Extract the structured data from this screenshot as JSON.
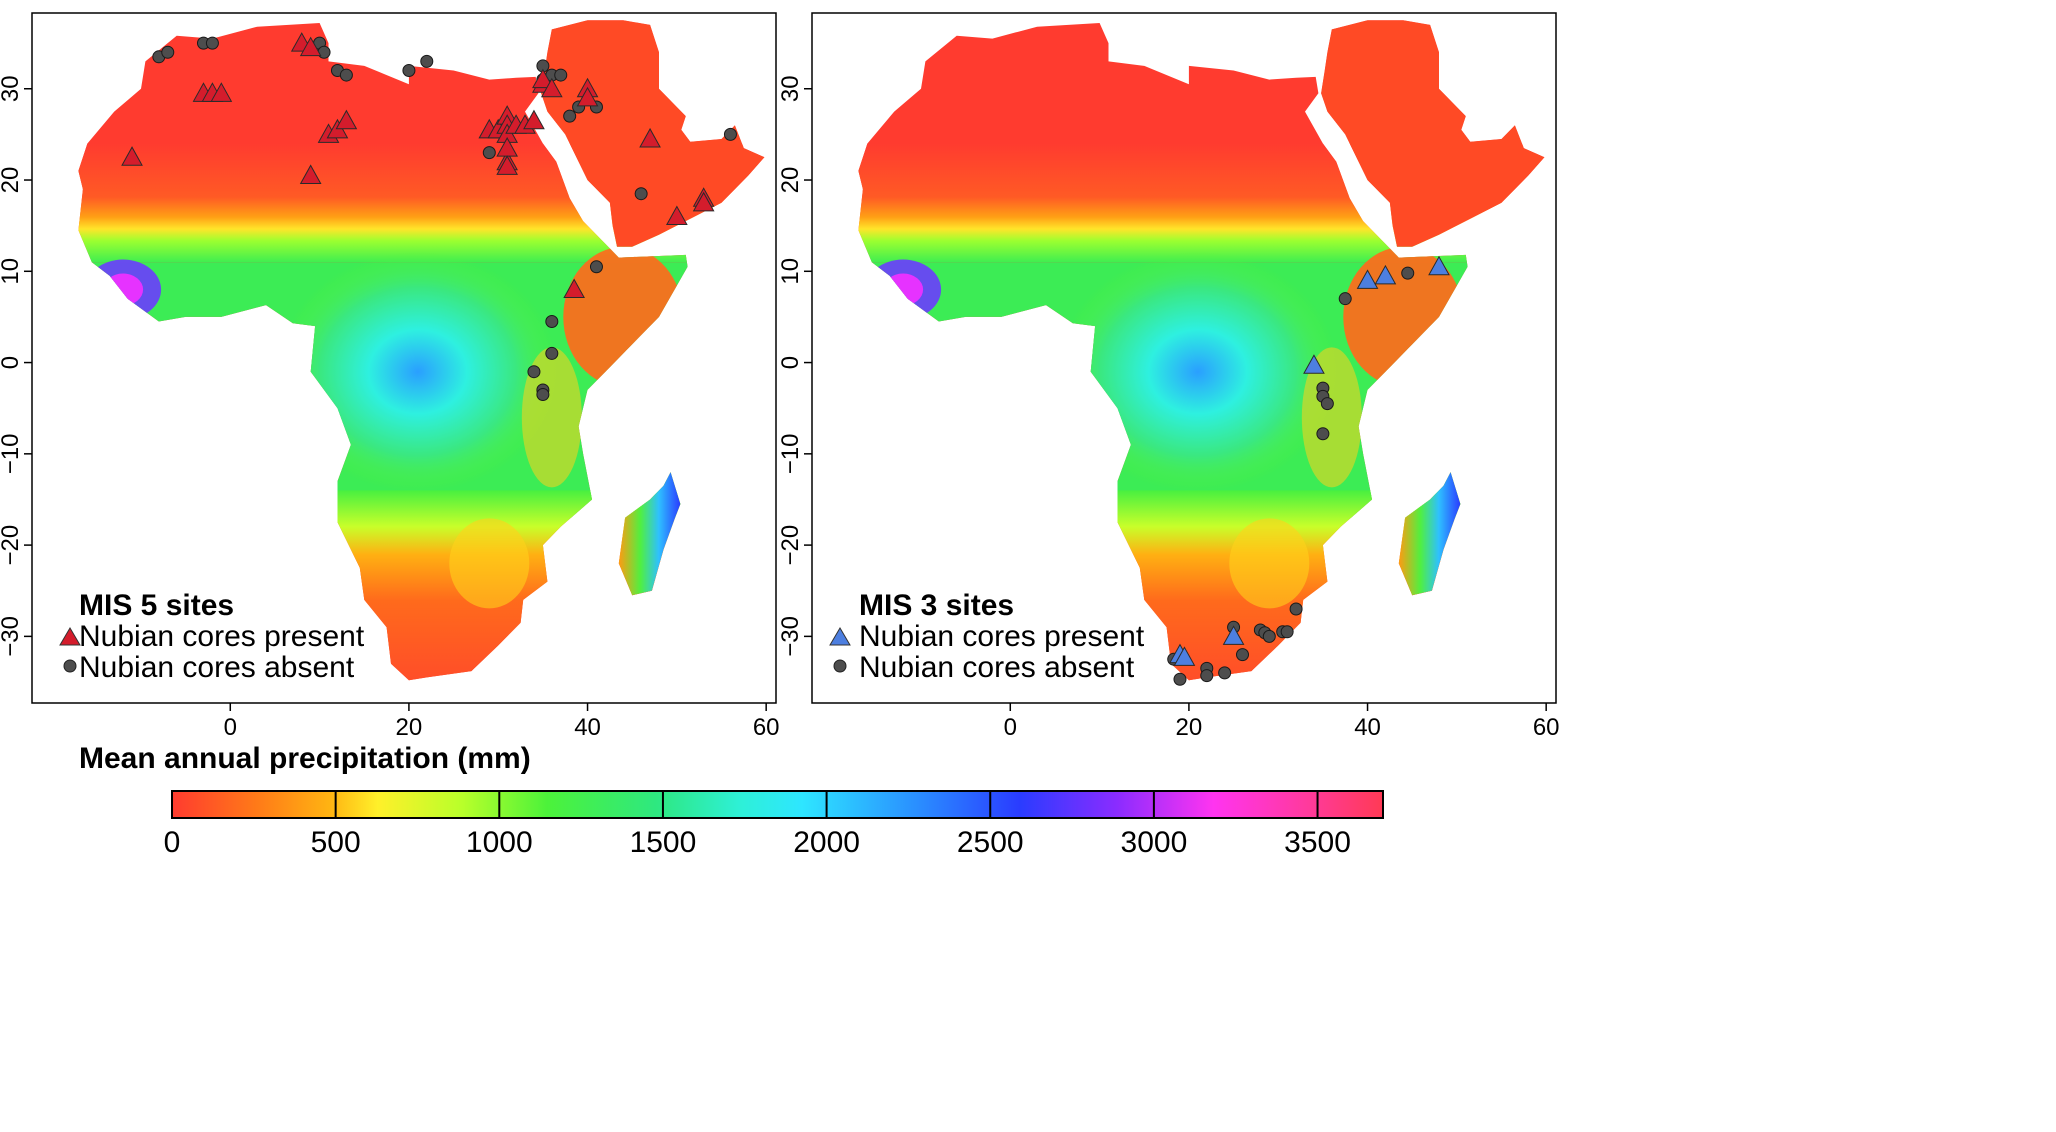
{
  "colors": {
    "precip_scale": [
      "#ff3b2f",
      "#ff6a1c",
      "#ff9a12",
      "#ffd21a",
      "#ffff2a",
      "#c6ff2a",
      "#55f23a",
      "#2fe86a",
      "#30f0b0",
      "#2ef6ff",
      "#2aa8ff",
      "#2a62ff",
      "#3a2cff",
      "#8a2cff",
      "#e632ff",
      "#ff3adc",
      "#ff3a55"
    ],
    "mis5_marker": "#d41c2c",
    "mis3_marker": "#4d7fe0",
    "absent_marker": "#4d4d4d",
    "land_dry": "#ff3b2f"
  },
  "legend_title": "Mean annual precipitation (mm)",
  "colorbar_ticks": [
    "0",
    "500",
    "1000",
    "1500",
    "2000",
    "2500",
    "3000",
    "3500"
  ],
  "panels": [
    {
      "legend": {
        "title": "MIS 5 sites",
        "present": "Nubian cores present",
        "absent": "Nubian cores absent"
      },
      "x_ticks": [
        "0",
        "20",
        "40",
        "60"
      ],
      "y_ticks": [
        "30",
        "20",
        "10",
        "0",
        "−10",
        "−20",
        "−30"
      ]
    },
    {
      "legend": {
        "title": "MIS 3 sites",
        "present": "Nubian cores present",
        "absent": "Nubian cores absent"
      },
      "x_ticks": [
        "0",
        "20",
        "40",
        "60"
      ],
      "y_ticks": [
        "30",
        "20",
        "10",
        "0",
        "−10",
        "−20",
        "−30"
      ]
    }
  ],
  "chart_data": [
    {
      "type": "scatter",
      "title": "",
      "xlim": [
        -20,
        61
      ],
      "ylim": [
        -37,
        38
      ],
      "series": [
        {
          "name": "Nubian cores present",
          "points": [
            [
              -11,
              22.5
            ],
            [
              -3,
              29.5
            ],
            [
              -2,
              29.5
            ],
            [
              -1,
              29.5
            ],
            [
              8,
              35
            ],
            [
              9,
              34.5
            ],
            [
              9,
              20.5
            ],
            [
              11,
              25
            ],
            [
              12,
              25.5
            ],
            [
              13,
              26.5
            ],
            [
              29,
              25.5
            ],
            [
              30,
              25.5
            ],
            [
              31,
              27
            ],
            [
              31,
              26
            ],
            [
              31,
              25
            ],
            [
              32,
              26
            ],
            [
              33,
              26
            ],
            [
              34,
              26.5
            ],
            [
              31,
              22
            ],
            [
              31,
              23.5
            ],
            [
              31,
              21.5
            ],
            [
              35,
              30.5
            ],
            [
              35,
              31
            ],
            [
              36,
              30
            ],
            [
              40,
              30
            ],
            [
              40,
              29
            ],
            [
              47,
              24.5
            ],
            [
              50,
              16
            ],
            [
              53,
              18
            ],
            [
              53,
              17.5
            ],
            [
              38.5,
              8
            ]
          ]
        },
        {
          "name": "Nubian cores absent",
          "points": [
            [
              -8,
              33.5
            ],
            [
              -7,
              34
            ],
            [
              -3,
              35
            ],
            [
              -2,
              35
            ],
            [
              10,
              35
            ],
            [
              10.5,
              34
            ],
            [
              12,
              32
            ],
            [
              13,
              31.5
            ],
            [
              20,
              32
            ],
            [
              22,
              33
            ],
            [
              29,
              23
            ],
            [
              35,
              32.5
            ],
            [
              35,
              31
            ],
            [
              36,
              31.5
            ],
            [
              37,
              31.5
            ],
            [
              38,
              27
            ],
            [
              39,
              28
            ],
            [
              41,
              28
            ],
            [
              46,
              18.5
            ],
            [
              56,
              25
            ],
            [
              41,
              10.5
            ],
            [
              36,
              4.5
            ],
            [
              36,
              1
            ],
            [
              34,
              -1
            ],
            [
              35,
              -3
            ],
            [
              35,
              -3.5
            ]
          ]
        }
      ]
    },
    {
      "type": "scatter",
      "title": "",
      "xlim": [
        -20,
        61
      ],
      "ylim": [
        -37,
        38
      ],
      "series": [
        {
          "name": "Nubian cores present",
          "points": [
            [
              40,
              9
            ],
            [
              42,
              9.5
            ],
            [
              48,
              10.5
            ],
            [
              34,
              -0.3
            ],
            [
              25,
              -30
            ],
            [
              19,
              -32
            ],
            [
              19.5,
              -32.3
            ]
          ]
        },
        {
          "name": "Nubian cores absent",
          "points": [
            [
              44.5,
              9.8
            ],
            [
              37.5,
              7
            ],
            [
              35,
              -2.8
            ],
            [
              35,
              -3.7
            ],
            [
              35.5,
              -4.5
            ],
            [
              35,
              -7.8
            ],
            [
              25,
              -29
            ],
            [
              28,
              -29.3
            ],
            [
              28.5,
              -29.6
            ],
            [
              29,
              -30
            ],
            [
              30.5,
              -29.5
            ],
            [
              31,
              -29.5
            ],
            [
              32,
              -27
            ],
            [
              26,
              -32
            ],
            [
              22,
              -33.5
            ],
            [
              22,
              -34.3
            ],
            [
              18.3,
              -32.5
            ],
            [
              19,
              -34.7
            ],
            [
              24,
              -34
            ]
          ]
        }
      ]
    }
  ]
}
